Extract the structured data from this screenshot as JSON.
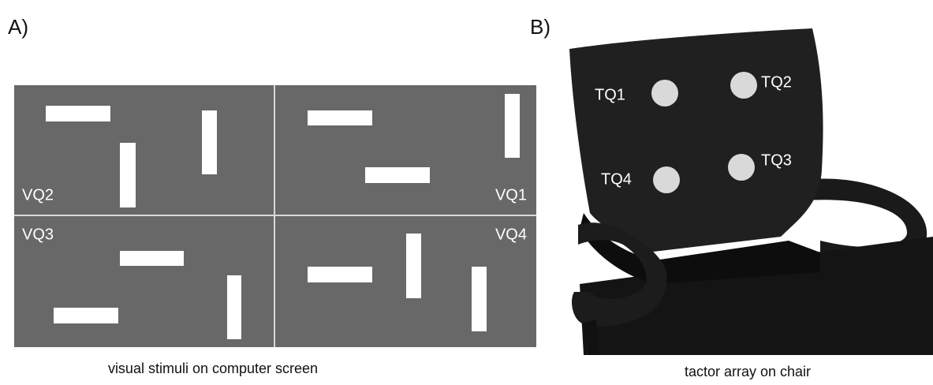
{
  "panels": {
    "a": {
      "label": "A)",
      "caption": "visual stimuli on computer screen",
      "quadrants": [
        "VQ2",
        "VQ1",
        "VQ3",
        "VQ4"
      ]
    },
    "b": {
      "label": "B)",
      "caption": "tactor array on chair",
      "tactors": [
        "TQ1",
        "TQ2",
        "TQ4",
        "TQ3"
      ]
    }
  }
}
